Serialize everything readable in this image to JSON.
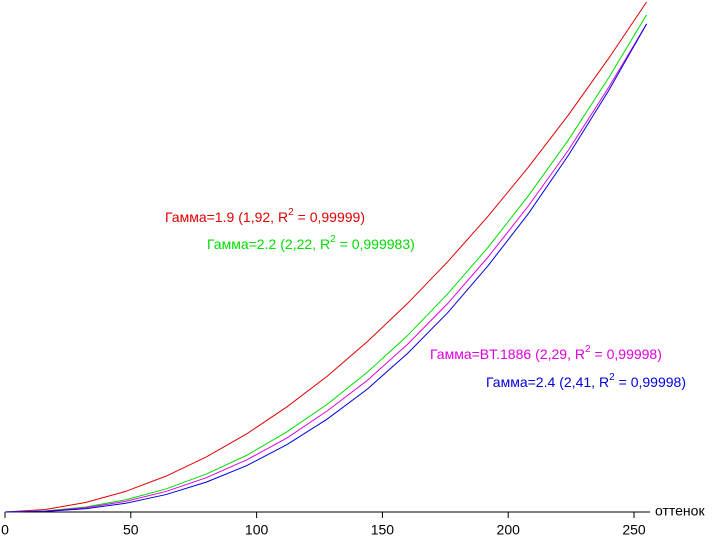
{
  "chart_data": {
    "type": "line",
    "x": [
      0,
      16,
      32,
      48,
      64,
      80,
      96,
      112,
      128,
      144,
      160,
      176,
      192,
      208,
      224,
      240,
      255
    ],
    "x_label": "оттенок",
    "xlim": [
      0,
      255
    ],
    "xticks": [
      0,
      50,
      100,
      150,
      200,
      250
    ],
    "ylim": [
      0,
      1.0
    ],
    "series": [
      {
        "name": "Гамма=1.9",
        "fit_prefix": "(1,92, R",
        "fit_sup": "2",
        "fit_suffix": "= 0,99999)",
        "color": "#e00000",
        "values": [
          0,
          0.0049,
          0.0186,
          0.0405,
          0.0703,
          0.108,
          0.153,
          0.206,
          0.266,
          0.334,
          0.409,
          0.491,
          0.58,
          0.676,
          0.779,
          0.89,
          1.0
        ]
      },
      {
        "name": "Гамма=2.2",
        "fit_prefix": "(2,22, R",
        "fit_sup": "2",
        "fit_suffix": "= 0,999983)",
        "color": "#00dd00",
        "values": [
          0,
          0.0021,
          0.0097,
          0.024,
          0.0452,
          0.0744,
          0.111,
          0.157,
          0.211,
          0.274,
          0.346,
          0.428,
          0.519,
          0.62,
          0.73,
          0.852,
          0.975
        ]
      },
      {
        "name": "Гамма=BT.1886",
        "fit_prefix": "(2,29, R",
        "fit_sup": "2",
        "fit_suffix": "= 0,99998)",
        "color": "#e000e0",
        "values": [
          0,
          0.0017,
          0.0083,
          0.0209,
          0.0403,
          0.0673,
          0.102,
          0.145,
          0.198,
          0.258,
          0.329,
          0.409,
          0.5,
          0.6,
          0.71,
          0.833,
          0.957
        ]
      },
      {
        "name": "Гамма=2.4",
        "fit_prefix": "(2,41, R",
        "fit_sup": "2",
        "fit_suffix": "= 0,99998)",
        "color": "#0000dd",
        "values": [
          0,
          0.0012,
          0.0064,
          0.0171,
          0.0342,
          0.0586,
          0.0908,
          0.132,
          0.182,
          0.241,
          0.311,
          0.391,
          0.483,
          0.585,
          0.7,
          0.827,
          0.957
        ]
      }
    ]
  }
}
